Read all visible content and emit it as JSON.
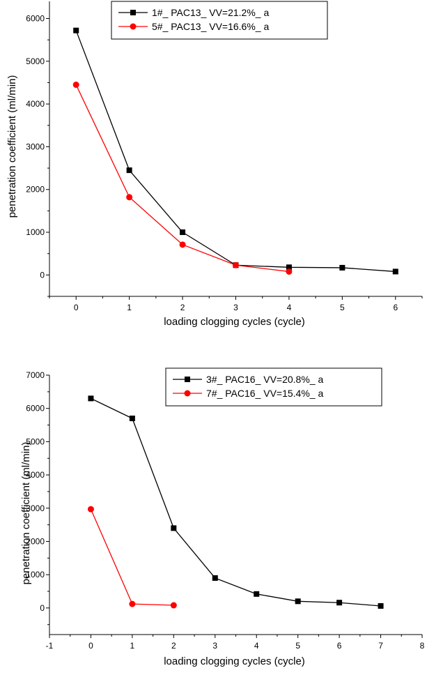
{
  "chart_data": [
    {
      "type": "line",
      "title": "",
      "xlabel": "loading clogging cycles (cycle)",
      "ylabel": "penetration coefficient (ml/min)",
      "xlim": [
        -0.5,
        6.5
      ],
      "ylim": [
        -500,
        6400
      ],
      "xticks": [
        0,
        1,
        2,
        3,
        4,
        5,
        6
      ],
      "yticks": [
        0,
        1000,
        2000,
        3000,
        4000,
        5000,
        6000
      ],
      "grid": false,
      "legend": "top-right",
      "series": [
        {
          "name": "1#_ PAC13_ VV=21.2%_ a",
          "color": "#000000",
          "marker": "square",
          "x": [
            0,
            1,
            2,
            3,
            4,
            5,
            6
          ],
          "y": [
            5720,
            2450,
            1000,
            230,
            180,
            170,
            80
          ]
        },
        {
          "name": "5#_ PAC13_ VV=16.6%_ a",
          "color": "#ff0000",
          "marker": "circle",
          "x": [
            0,
            1,
            2,
            3,
            4
          ],
          "y": [
            4450,
            1820,
            710,
            230,
            80
          ]
        }
      ]
    },
    {
      "type": "line",
      "title": "",
      "xlabel": "loading clogging cycles (cycle)",
      "ylabel": "penetration coefficient (ml/min)",
      "xlim": [
        -1,
        8
      ],
      "ylim": [
        -800,
        7000
      ],
      "xticks": [
        -1,
        0,
        1,
        2,
        3,
        4,
        5,
        6,
        7,
        8
      ],
      "yticks": [
        0,
        1000,
        2000,
        3000,
        4000,
        5000,
        6000,
        7000
      ],
      "grid": false,
      "legend": "top-right",
      "series": [
        {
          "name": "3#_ PAC16_ VV=20.8%_ a",
          "color": "#000000",
          "marker": "square",
          "x": [
            0,
            1,
            2,
            3,
            4,
            5,
            6,
            7
          ],
          "y": [
            6300,
            5700,
            2400,
            900,
            420,
            200,
            160,
            60
          ]
        },
        {
          "name": "7#_ PAC16_ VV=15.4%_ a",
          "color": "#ff0000",
          "marker": "circle",
          "x": [
            0,
            1,
            2
          ],
          "y": [
            2970,
            120,
            80
          ]
        }
      ]
    }
  ]
}
